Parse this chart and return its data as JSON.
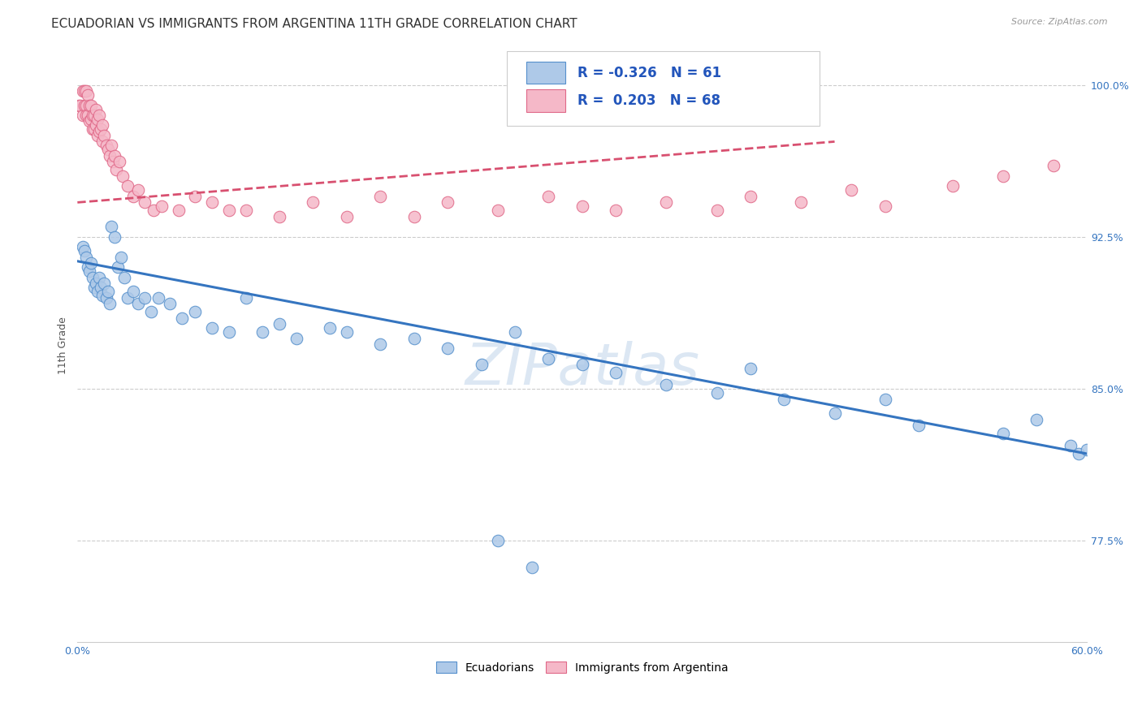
{
  "title": "ECUADORIAN VS IMMIGRANTS FROM ARGENTINA 11TH GRADE CORRELATION CHART",
  "source": "Source: ZipAtlas.com",
  "ylabel": "11th Grade",
  "xmin": 0.0,
  "xmax": 0.6,
  "ymin": 0.725,
  "ymax": 1.018,
  "yticks": [
    0.775,
    0.85,
    0.925,
    1.0
  ],
  "ytick_labels": [
    "77.5%",
    "85.0%",
    "92.5%",
    "100.0%"
  ],
  "xticks": [
    0.0,
    0.1,
    0.2,
    0.3,
    0.4,
    0.5,
    0.6
  ],
  "xtick_labels": [
    "0.0%",
    "",
    "",
    "",
    "",
    "",
    "60.0%"
  ],
  "blue_R": -0.326,
  "blue_N": 61,
  "pink_R": 0.203,
  "pink_N": 68,
  "legend_label_blue": "Ecuadorians",
  "legend_label_pink": "Immigrants from Argentina",
  "watermark": "ZIPatlas",
  "blue_scatter_x": [
    0.003,
    0.004,
    0.005,
    0.006,
    0.007,
    0.008,
    0.009,
    0.01,
    0.011,
    0.012,
    0.013,
    0.014,
    0.015,
    0.016,
    0.017,
    0.018,
    0.019,
    0.02,
    0.022,
    0.024,
    0.026,
    0.028,
    0.03,
    0.033,
    0.036,
    0.04,
    0.044,
    0.048,
    0.055,
    0.062,
    0.07,
    0.08,
    0.09,
    0.1,
    0.11,
    0.12,
    0.13,
    0.15,
    0.16,
    0.18,
    0.2,
    0.22,
    0.24,
    0.26,
    0.28,
    0.3,
    0.32,
    0.35,
    0.38,
    0.4,
    0.42,
    0.45,
    0.48,
    0.5,
    0.55,
    0.57,
    0.59,
    0.595,
    0.6,
    0.25,
    0.27
  ],
  "blue_scatter_y": [
    0.92,
    0.918,
    0.915,
    0.91,
    0.908,
    0.912,
    0.905,
    0.9,
    0.902,
    0.898,
    0.905,
    0.9,
    0.896,
    0.902,
    0.895,
    0.898,
    0.892,
    0.93,
    0.925,
    0.91,
    0.915,
    0.905,
    0.895,
    0.898,
    0.892,
    0.895,
    0.888,
    0.895,
    0.892,
    0.885,
    0.888,
    0.88,
    0.878,
    0.895,
    0.878,
    0.882,
    0.875,
    0.88,
    0.878,
    0.872,
    0.875,
    0.87,
    0.862,
    0.878,
    0.865,
    0.862,
    0.858,
    0.852,
    0.848,
    0.86,
    0.845,
    0.838,
    0.845,
    0.832,
    0.828,
    0.835,
    0.822,
    0.818,
    0.82,
    0.775,
    0.762
  ],
  "pink_scatter_x": [
    0.001,
    0.002,
    0.003,
    0.003,
    0.004,
    0.004,
    0.005,
    0.005,
    0.005,
    0.006,
    0.006,
    0.007,
    0.007,
    0.008,
    0.008,
    0.009,
    0.009,
    0.01,
    0.01,
    0.011,
    0.011,
    0.012,
    0.012,
    0.013,
    0.013,
    0.014,
    0.015,
    0.015,
    0.016,
    0.017,
    0.018,
    0.019,
    0.02,
    0.021,
    0.022,
    0.023,
    0.025,
    0.027,
    0.03,
    0.033,
    0.036,
    0.04,
    0.045,
    0.05,
    0.06,
    0.07,
    0.08,
    0.09,
    0.1,
    0.12,
    0.14,
    0.16,
    0.18,
    0.2,
    0.22,
    0.25,
    0.28,
    0.3,
    0.32,
    0.35,
    0.38,
    0.4,
    0.43,
    0.46,
    0.48,
    0.52,
    0.55,
    0.58
  ],
  "pink_scatter_y": [
    0.99,
    0.99,
    0.997,
    0.985,
    0.997,
    0.99,
    0.997,
    0.99,
    0.985,
    0.995,
    0.985,
    0.99,
    0.982,
    0.99,
    0.983,
    0.985,
    0.978,
    0.985,
    0.978,
    0.988,
    0.98,
    0.983,
    0.975,
    0.985,
    0.977,
    0.978,
    0.98,
    0.972,
    0.975,
    0.97,
    0.968,
    0.965,
    0.97,
    0.962,
    0.965,
    0.958,
    0.962,
    0.955,
    0.95,
    0.945,
    0.948,
    0.942,
    0.938,
    0.94,
    0.938,
    0.945,
    0.942,
    0.938,
    0.938,
    0.935,
    0.942,
    0.935,
    0.945,
    0.935,
    0.942,
    0.938,
    0.945,
    0.94,
    0.938,
    0.942,
    0.938,
    0.945,
    0.942,
    0.948,
    0.94,
    0.95,
    0.955,
    0.96
  ],
  "blue_line_x": [
    0.0,
    0.6
  ],
  "blue_line_y": [
    0.913,
    0.818
  ],
  "pink_line_x": [
    0.0,
    0.45
  ],
  "pink_line_y": [
    0.942,
    0.972
  ],
  "blue_color": "#aec9e8",
  "pink_color": "#f5b8c8",
  "blue_edge_color": "#5590cc",
  "pink_edge_color": "#e06888",
  "blue_line_color": "#3575c0",
  "pink_line_color": "#d85070",
  "background_color": "#ffffff",
  "grid_color": "#cccccc",
  "title_fontsize": 11,
  "axis_label_fontsize": 9,
  "tick_fontsize": 9
}
